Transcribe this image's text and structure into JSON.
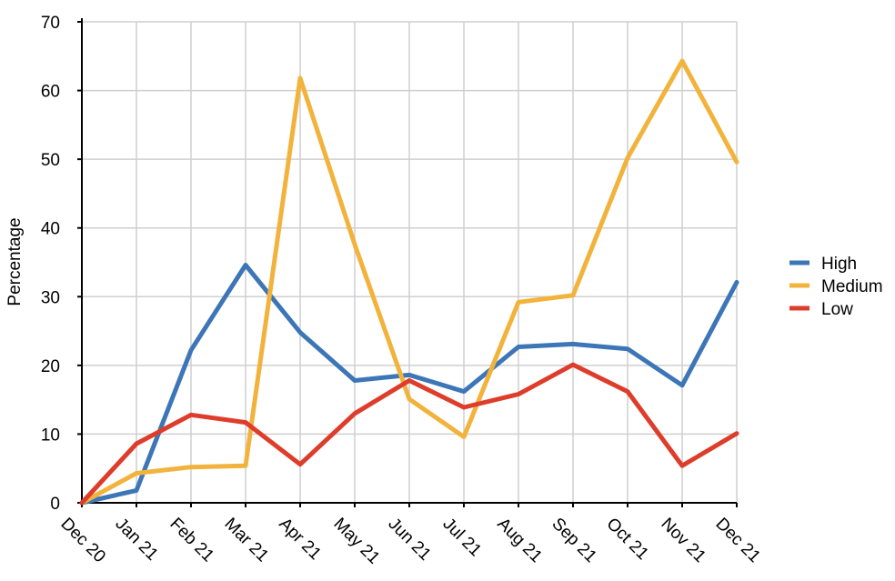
{
  "chart_data": {
    "type": "line",
    "title": "",
    "xlabel": "",
    "ylabel": "Percentage",
    "categories": [
      "Dec 20",
      "Jan 21",
      "Feb 21",
      "Mar 21",
      "Apr 21",
      "May 21",
      "Jun 21",
      "Jul 21",
      "Aug 21",
      "Sep 21",
      "Oct 21",
      "Nov 21",
      "Dec 21"
    ],
    "ylim": [
      0,
      70
    ],
    "yticks": [
      0,
      10,
      20,
      30,
      40,
      50,
      60,
      70
    ],
    "grid": true,
    "legend_position": "right",
    "series": [
      {
        "name": "High",
        "color": "#3d76b7",
        "values": [
          0,
          1.8,
          22.2,
          34.6,
          24.8,
          17.8,
          18.6,
          16.2,
          22.7,
          23.1,
          22.4,
          17.1,
          32.1
        ]
      },
      {
        "name": "Medium",
        "color": "#f2b33d",
        "values": [
          0,
          4.3,
          5.2,
          5.4,
          61.8,
          37.6,
          15.1,
          9.6,
          29.2,
          30.2,
          50.2,
          64.3,
          49.6
        ]
      },
      {
        "name": "Low",
        "color": "#de3d2b",
        "values": [
          0,
          8.6,
          12.8,
          11.7,
          5.6,
          13.0,
          17.8,
          13.9,
          15.8,
          20.1,
          16.2,
          5.4,
          10.1
        ]
      }
    ]
  }
}
